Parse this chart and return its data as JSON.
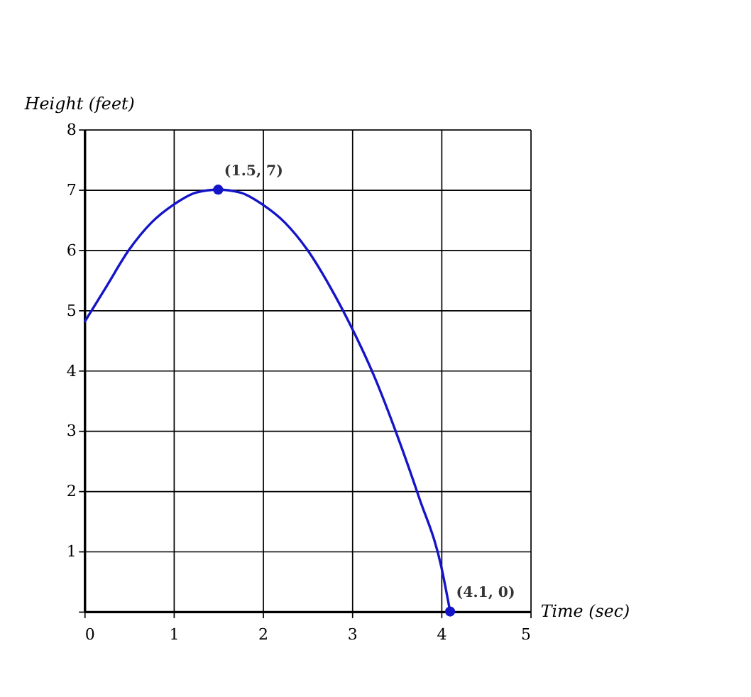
{
  "chart_data": {
    "type": "line",
    "xlabel": "Time (sec)",
    "ylabel": "Height (feet)",
    "series": [
      {
        "color": "#1414c8",
        "x": [
          0,
          0.25,
          0.5,
          0.75,
          1,
          1.25,
          1.5,
          1.75,
          2,
          2.25,
          2.5,
          2.75,
          3,
          3.25,
          3.5,
          3.75,
          4,
          4.1
        ],
        "values": [
          4.8,
          5.4,
          6.0,
          6.45,
          6.75,
          6.95,
          7,
          6.95,
          6.75,
          6.45,
          6.0,
          5.4,
          4.7,
          3.9,
          2.95,
          1.9,
          0.75,
          0
        ]
      }
    ],
    "annotations": [
      {
        "text": "(1.5, 7)",
        "x": 1.5,
        "y": 7
      },
      {
        "text": "(4.1, 0)",
        "x": 4.1,
        "y": 0
      }
    ],
    "xlim": [
      0,
      5
    ],
    "ylim": [
      0,
      8
    ],
    "xticks": [
      0,
      1,
      2,
      3,
      4,
      5
    ],
    "yticks": [
      {
        "value": 0,
        "label": null
      },
      1,
      2,
      3,
      4,
      5,
      6,
      7,
      8
    ],
    "grid": true,
    "marker": "none",
    "line_style": "solid"
  }
}
